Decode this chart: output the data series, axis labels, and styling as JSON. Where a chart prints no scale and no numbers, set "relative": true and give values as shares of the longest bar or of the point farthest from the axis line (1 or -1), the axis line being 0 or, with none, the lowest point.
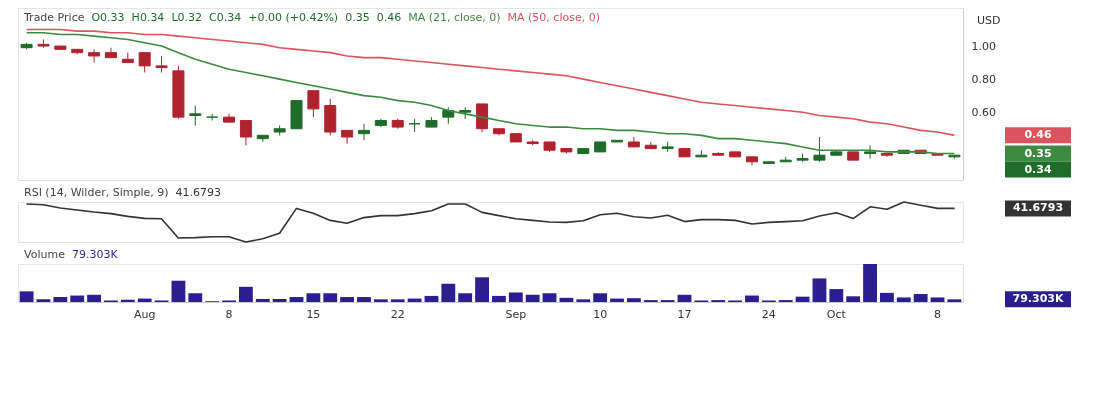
{
  "chart_data": [
    {
      "type": "candlestick",
      "title": "Trade Price",
      "ylabel": "USD",
      "legend": "top left",
      "tick_labels": "y",
      "categories": [
        null,
        null,
        null,
        null,
        null,
        null,
        null,
        null,
        null,
        null,
        null,
        null,
        null,
        null,
        null,
        null,
        null,
        null,
        null,
        null,
        null,
        null,
        null,
        null,
        null,
        null,
        null,
        null,
        null,
        null,
        null,
        null,
        null,
        null,
        null,
        null,
        null,
        null,
        null,
        null,
        null,
        null,
        null,
        null,
        null,
        null,
        null,
        null,
        null,
        null,
        null,
        null,
        null,
        null,
        null,
        null
      ],
      "ohlc": [
        [
          0.99,
          1.02,
          0.98,
          1.01
        ],
        [
          1.01,
          1.04,
          0.99,
          1.0
        ],
        [
          1.0,
          1.0,
          0.98,
          0.98
        ],
        [
          0.98,
          0.98,
          0.95,
          0.96
        ],
        [
          0.96,
          0.98,
          0.9,
          0.94
        ],
        [
          0.96,
          0.99,
          0.93,
          0.93
        ],
        [
          0.92,
          0.96,
          0.9,
          0.9
        ],
        [
          0.96,
          0.96,
          0.84,
          0.88
        ],
        [
          0.88,
          0.94,
          0.84,
          0.87
        ],
        [
          0.85,
          0.88,
          0.56,
          0.57
        ],
        [
          0.58,
          0.64,
          0.52,
          0.59
        ],
        [
          0.57,
          0.59,
          0.55,
          0.57
        ],
        [
          0.57,
          0.59,
          0.54,
          0.54
        ],
        [
          0.55,
          0.55,
          0.4,
          0.45
        ],
        [
          0.44,
          0.46,
          0.42,
          0.46
        ],
        [
          0.48,
          0.52,
          0.46,
          0.5
        ],
        [
          0.5,
          0.67,
          0.5,
          0.67
        ],
        [
          0.73,
          0.73,
          0.57,
          0.62
        ],
        [
          0.64,
          0.68,
          0.46,
          0.48
        ],
        [
          0.49,
          0.49,
          0.41,
          0.45
        ],
        [
          0.47,
          0.53,
          0.43,
          0.49
        ],
        [
          0.52,
          0.56,
          0.51,
          0.55
        ],
        [
          0.55,
          0.56,
          0.5,
          0.51
        ],
        [
          0.53,
          0.56,
          0.48,
          0.53
        ],
        [
          0.51,
          0.57,
          0.51,
          0.55
        ],
        [
          0.57,
          0.63,
          0.53,
          0.61
        ],
        [
          0.6,
          0.63,
          0.56,
          0.61
        ],
        [
          0.65,
          0.65,
          0.48,
          0.5
        ],
        [
          0.5,
          0.5,
          0.46,
          0.47
        ],
        [
          0.47,
          0.47,
          0.42,
          0.42
        ],
        [
          0.42,
          0.43,
          0.4,
          0.41
        ],
        [
          0.42,
          0.42,
          0.36,
          0.37
        ],
        [
          0.38,
          0.38,
          0.35,
          0.36
        ],
        [
          0.35,
          0.38,
          0.35,
          0.38
        ],
        [
          0.36,
          0.42,
          0.36,
          0.42
        ],
        [
          0.42,
          0.43,
          0.42,
          0.43
        ],
        [
          0.42,
          0.45,
          0.39,
          0.39
        ],
        [
          0.4,
          0.42,
          0.38,
          0.38
        ],
        [
          0.38,
          0.42,
          0.36,
          0.39
        ],
        [
          0.38,
          0.38,
          0.33,
          0.33
        ],
        [
          0.33,
          0.37,
          0.33,
          0.34
        ],
        [
          0.35,
          0.36,
          0.34,
          0.34
        ],
        [
          0.36,
          0.36,
          0.33,
          0.33
        ],
        [
          0.33,
          0.33,
          0.28,
          0.3
        ],
        [
          0.29,
          0.3,
          0.29,
          0.3
        ],
        [
          0.3,
          0.33,
          0.3,
          0.31
        ],
        [
          0.31,
          0.35,
          0.3,
          0.32
        ],
        [
          0.31,
          0.45,
          0.3,
          0.34
        ],
        [
          0.34,
          0.37,
          0.34,
          0.36
        ],
        [
          0.36,
          0.36,
          0.31,
          0.31
        ],
        [
          0.35,
          0.4,
          0.32,
          0.36
        ],
        [
          0.35,
          0.35,
          0.33,
          0.34
        ],
        [
          0.35,
          0.37,
          0.35,
          0.37
        ],
        [
          0.37,
          0.37,
          0.35,
          0.35
        ],
        [
          0.35,
          0.35,
          0.34,
          0.34
        ],
        [
          0.33,
          0.34,
          0.32,
          0.34
        ]
      ],
      "series": [
        {
          "name": "MA (21, close, 0)",
          "type": "line",
          "color": "#3d8b40",
          "values": [
            1.08,
            1.08,
            1.07,
            1.07,
            1.06,
            1.05,
            1.04,
            1.02,
            1.0,
            0.96,
            0.92,
            0.89,
            0.86,
            0.84,
            0.82,
            0.8,
            0.78,
            0.76,
            0.74,
            0.72,
            0.7,
            0.69,
            0.67,
            0.66,
            0.64,
            0.61,
            0.59,
            0.57,
            0.55,
            0.53,
            0.52,
            0.51,
            0.51,
            0.5,
            0.5,
            0.49,
            0.49,
            0.48,
            0.47,
            0.47,
            0.46,
            0.44,
            0.44,
            0.43,
            0.42,
            0.41,
            0.39,
            0.37,
            0.37,
            0.37,
            0.37,
            0.36,
            0.36,
            0.36,
            0.35,
            0.35
          ]
        },
        {
          "name": "MA (50, close, 0)",
          "type": "line",
          "color": "#d9545c",
          "values": [
            1.1,
            1.1,
            1.1,
            1.09,
            1.09,
            1.08,
            1.08,
            1.07,
            1.07,
            1.06,
            1.05,
            1.04,
            1.03,
            1.02,
            1.01,
            0.99,
            0.98,
            0.97,
            0.96,
            0.94,
            0.93,
            0.93,
            0.92,
            0.91,
            0.9,
            0.89,
            0.88,
            0.87,
            0.86,
            0.85,
            0.84,
            0.83,
            0.82,
            0.8,
            0.78,
            0.76,
            0.74,
            0.72,
            0.7,
            0.68,
            0.66,
            0.65,
            0.64,
            0.63,
            0.62,
            0.61,
            0.6,
            0.58,
            0.57,
            0.56,
            0.54,
            0.53,
            0.51,
            0.49,
            0.48,
            0.46
          ]
        }
      ],
      "ylim": [
        0.19,
        1.23
      ],
      "yticks": [
        {
          "value": 0.6,
          "label": "0.60"
        },
        {
          "value": 0.8,
          "label": "0.80"
        },
        {
          "value": 1.0,
          "label": "1.00"
        }
      ],
      "annotations": [
        "O0.33",
        "H0.34",
        "L0.32",
        "C0.34",
        "+0.00 (+0.42%)",
        "0.35",
        "0.46",
        "0.35",
        "0.46",
        "0.34"
      ]
    },
    {
      "type": "line",
      "title": "RSI (14, Wilder, Simple, 9)",
      "relative": true,
      "categories": [
        null,
        null,
        null,
        null,
        null,
        null,
        null,
        null,
        null,
        null,
        null,
        null,
        null,
        null,
        null,
        null,
        null,
        null,
        null,
        null,
        null,
        null,
        null,
        null,
        null,
        null,
        null,
        null,
        null,
        null,
        null,
        null,
        null,
        null,
        null,
        null,
        null,
        null,
        null,
        null,
        null,
        null,
        null,
        null,
        null,
        null,
        null,
        null,
        null,
        null,
        null,
        null,
        null,
        null,
        null,
        null
      ],
      "series": [
        {
          "color": "#333333",
          "values": [
            0.95,
            0.93,
            0.85,
            0.8,
            0.75,
            0.71,
            0.64,
            0.59,
            0.58,
            0.1,
            0.11,
            0.13,
            0.13,
            0,
            0.08,
            0.22,
            0.84,
            0.72,
            0.54,
            0.47,
            0.61,
            0.66,
            0.66,
            0.71,
            0.78,
            0.95,
            0.95,
            0.74,
            0.66,
            0.58,
            0.54,
            0.5,
            0.49,
            0.53,
            0.68,
            0.72,
            0.63,
            0.6,
            0.67,
            0.51,
            0.56,
            0.56,
            0.54,
            0.45,
            0.49,
            0.51,
            0.53,
            0.65,
            0.73,
            0.59,
            0.88,
            0.82,
            1,
            0.92,
            0.84,
            0.84
          ]
        }
      ],
      "annotations": [
        "41.6793",
        "41.6793"
      ]
    },
    {
      "type": "bar",
      "title": "Volume",
      "relative": true,
      "tick_labels": "x",
      "categories": [
        null,
        null,
        null,
        null,
        null,
        null,
        null,
        "Aug",
        null,
        null,
        null,
        null,
        "8",
        null,
        null,
        null,
        null,
        "15",
        null,
        null,
        null,
        null,
        "22",
        null,
        null,
        null,
        null,
        null,
        null,
        "Sep",
        null,
        null,
        null,
        null,
        "10",
        null,
        null,
        null,
        null,
        "17",
        null,
        null,
        null,
        null,
        "24",
        null,
        null,
        null,
        "Oct",
        null,
        null,
        null,
        null,
        null,
        "8",
        null
      ],
      "series": [
        {
          "color": "#2d1e8f",
          "values": [
            0.28,
            0.07,
            0.13,
            0.17,
            0.19,
            0.04,
            0.06,
            0.09,
            0.04,
            0.56,
            0.23,
            0.02,
            0.04,
            0.4,
            0.08,
            0.08,
            0.13,
            0.23,
            0.23,
            0.13,
            0.13,
            0.07,
            0.07,
            0.09,
            0.16,
            0.48,
            0.23,
            0.65,
            0.16,
            0.25,
            0.19,
            0.23,
            0.11,
            0.07,
            0.23,
            0.09,
            0.1,
            0.05,
            0.05,
            0.19,
            0.04,
            0.05,
            0.04,
            0.17,
            0.04,
            0.05,
            0.14,
            0.62,
            0.34,
            0.15,
            1,
            0.24,
            0.12,
            0.21,
            0.12,
            0.07
          ]
        }
      ],
      "annotations": [
        "79.303K",
        "79.303K"
      ]
    }
  ]
}
